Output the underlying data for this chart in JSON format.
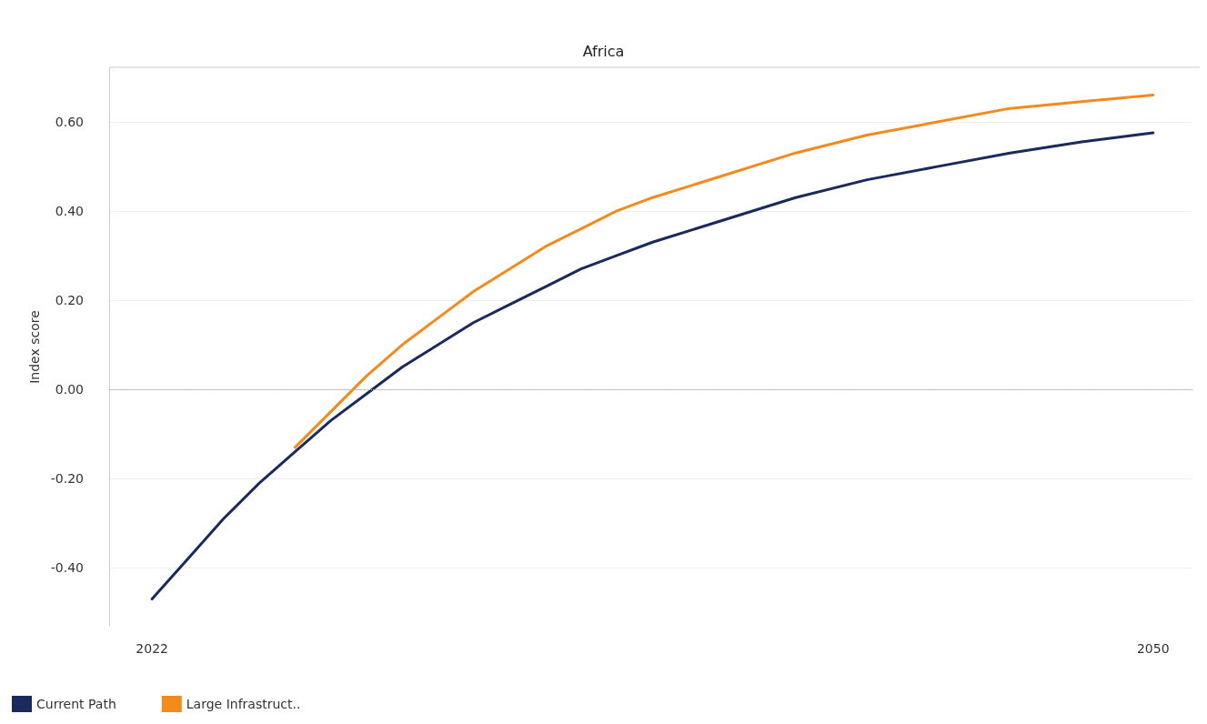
{
  "chart_data": {
    "type": "line",
    "title": "Africa",
    "ylabel": "Index score",
    "x": [
      2022,
      2023,
      2024,
      2025,
      2026,
      2027,
      2028,
      2029,
      2030,
      2031,
      2032,
      2033,
      2034,
      2035,
      2036,
      2038,
      2040,
      2042,
      2044,
      2046,
      2048,
      2050
    ],
    "series": [
      {
        "name": "Current Path",
        "color": "#1b2a5c",
        "values": [
          -0.47,
          -0.38,
          -0.29,
          -0.21,
          -0.14,
          -0.07,
          -0.01,
          0.05,
          0.1,
          0.15,
          0.19,
          0.23,
          0.27,
          0.3,
          0.33,
          0.38,
          0.43,
          0.47,
          0.5,
          0.53,
          0.555,
          0.575
        ]
      },
      {
        "name": "Large Infrastruct..",
        "color": "#f28a1e",
        "values": [
          null,
          null,
          null,
          null,
          -0.13,
          -0.05,
          0.03,
          0.1,
          0.16,
          0.22,
          0.27,
          0.32,
          0.36,
          0.4,
          0.43,
          0.48,
          0.53,
          0.57,
          0.6,
          0.63,
          0.645,
          0.66
        ]
      }
    ],
    "xlim": [
      2020.8,
      2051.1
    ],
    "xticks": [
      2022,
      2050
    ],
    "ylim": [
      -0.53,
      0.72
    ],
    "yticks": [
      {
        "value": -0.4,
        "label": "-0.40"
      },
      {
        "value": -0.2,
        "label": "-0.20"
      },
      {
        "value": 0,
        "label": "0.00"
      },
      {
        "value": 0.2,
        "label": "0.20"
      },
      {
        "value": 0.4,
        "label": "0.40"
      },
      {
        "value": 0.6,
        "label": "0.60"
      }
    ],
    "ref_lines": [
      {
        "axis": "y",
        "value": 0,
        "color": "#bbbbbb",
        "line_style": "dotted"
      }
    ],
    "grid": "y",
    "legend": "bottom left",
    "marker": "none",
    "line_style": "solid"
  }
}
